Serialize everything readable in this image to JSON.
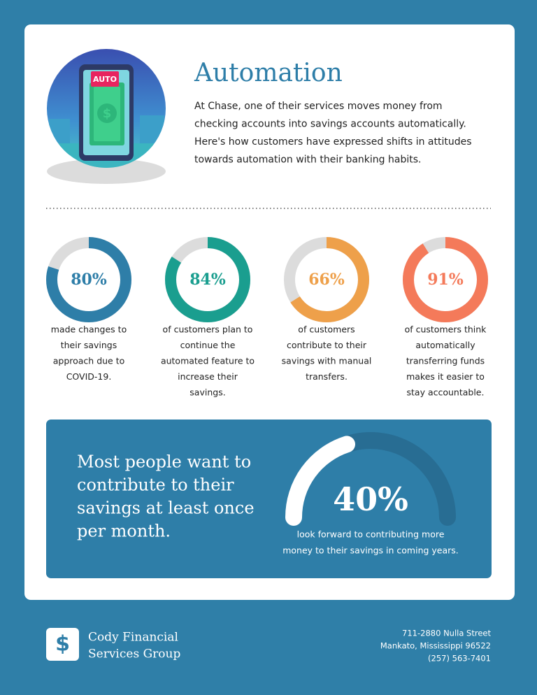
{
  "illustration": {
    "badge": "AUTO"
  },
  "header": {
    "title": "Automation",
    "body": [
      "At Chase, one of their services moves money from",
      "checking accounts into savings accounts automatically.",
      "Here's how customers have expressed shifts in attitudes",
      "towards automation with their banking habits."
    ]
  },
  "stats": [
    {
      "value": 80,
      "label": "80%",
      "color": "#2e7ea8",
      "caption": [
        "made changes to",
        "their savings",
        "approach due to",
        "COVID-19."
      ]
    },
    {
      "value": 84,
      "label": "84%",
      "color": "#1a9e8f",
      "caption": [
        "of customers plan to",
        "continue the",
        "automated feature to",
        "increase their",
        "savings."
      ]
    },
    {
      "value": 66,
      "label": "66%",
      "color": "#eea04a",
      "caption": [
        "of customers",
        "contribute to their",
        "savings with manual",
        "transfers."
      ]
    },
    {
      "value": 91,
      "label": "91%",
      "color": "#f47a5a",
      "caption": [
        "of customers think",
        "automatically",
        "transferring funds",
        "makes it easier to",
        "stay accountable."
      ]
    }
  ],
  "highlight": {
    "text": [
      "Most people want to",
      "contribute to their",
      "savings at least once",
      "per month."
    ],
    "value": 40,
    "label": "40%",
    "caption": [
      "look forward to contributing more",
      "money to their savings in coming years."
    ]
  },
  "footer": {
    "company": [
      "Cody Financial",
      "Services Group"
    ],
    "address": [
      "711-2880 Nulla Street",
      "Mankato, Mississippi 96522",
      "(257) 563-7401"
    ]
  }
}
